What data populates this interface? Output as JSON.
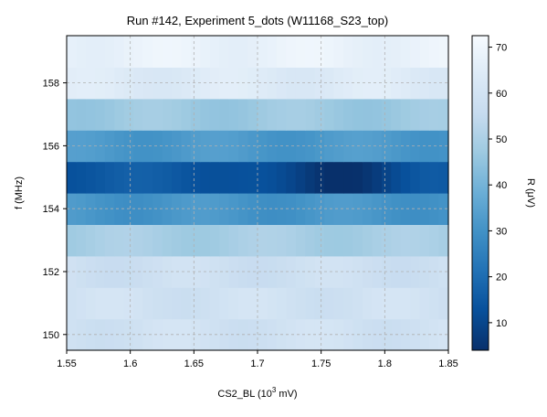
{
  "chart_data": {
    "type": "heatmap",
    "title": "Run #142, Experiment 5_dots (W11168_S23_top)",
    "xlabel_main": "CS2_BL (10",
    "xlabel_sup": "3",
    "xlabel_tail": " mV)",
    "ylabel": "f (MHz)",
    "colorbar_label": "R (μV)",
    "colormap": "Blues_r",
    "xlim": [
      1.55,
      1.85
    ],
    "ylim": [
      149.5,
      159.5
    ],
    "clim": [
      4,
      72.5
    ],
    "x_tick_values": [
      1.55,
      1.6,
      1.65,
      1.7,
      1.75,
      1.8,
      1.85
    ],
    "x_tick_labels": [
      "1.55",
      "1.6",
      "1.65",
      "1.7",
      "1.75",
      "1.8",
      "1.85"
    ],
    "y_tick_values": [
      150,
      152,
      154,
      156,
      158
    ],
    "y_tick_labels": [
      "150",
      "152",
      "154",
      "156",
      "158"
    ],
    "colorbar_tick_values": [
      10,
      20,
      30,
      40,
      50,
      60,
      70
    ],
    "colorbar_tick_labels": [
      "10",
      "20",
      "30",
      "40",
      "50",
      "60",
      "70"
    ],
    "grid": true,
    "x_columns": 40,
    "rows": [
      {
        "f": 150.0,
        "base": 59,
        "dip": 0,
        "var": 2
      },
      {
        "f": 151.0,
        "base": 59,
        "dip": 0,
        "var": 2
      },
      {
        "f": 152.0,
        "base": 58,
        "dip": 0,
        "var": 2
      },
      {
        "f": 153.0,
        "base": 49,
        "dip": 0,
        "var": 2
      },
      {
        "f": 154.0,
        "base": 31,
        "dip": 0,
        "var": 2
      },
      {
        "f": 155.0,
        "base": 15,
        "dip": 10,
        "var": 2
      },
      {
        "f": 156.0,
        "base": 32,
        "dip": 0,
        "var": 2
      },
      {
        "f": 157.0,
        "base": 47,
        "dip": 0,
        "var": 2
      },
      {
        "f": 158.0,
        "base": 64,
        "dip": 0,
        "var": 2
      },
      {
        "f": 159.0,
        "base": 68,
        "dip": 0,
        "var": 2
      }
    ]
  }
}
